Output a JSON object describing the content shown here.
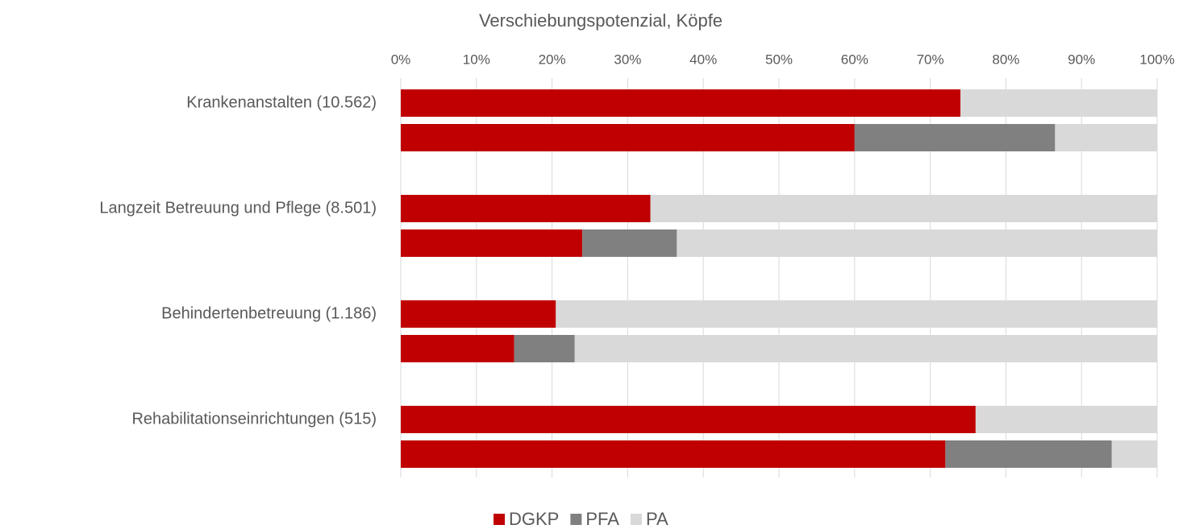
{
  "chart_data": {
    "type": "stacked_barh",
    "title": "Verschiebungspotenzial, Köpfe",
    "categories": [
      "Krankenanstalten (10.562)",
      null,
      "Langzeit Betreuung und Pflege (8.501)",
      null,
      "Behindertenbetreuung (1.186)",
      null,
      "Rehabilitationseinrichtungen (515)",
      null
    ],
    "series": [
      {
        "name": "DGKP",
        "color": "#c00000",
        "values": [
          74,
          60,
          33,
          24,
          20.5,
          15,
          76,
          72
        ]
      },
      {
        "name": "PFA",
        "color": "#808080",
        "values": [
          0,
          26.5,
          0,
          12.5,
          0,
          8,
          0,
          22
        ]
      },
      {
        "name": "PA",
        "color": "#d9d9d9",
        "values": [
          26,
          13.5,
          67,
          63.5,
          79.5,
          77,
          24,
          6
        ]
      }
    ],
    "xlim": [
      0,
      100
    ],
    "xticks": [
      {
        "value": 0,
        "label": "0%"
      },
      {
        "value": 10,
        "label": "10%"
      },
      {
        "value": 20,
        "label": "20%"
      },
      {
        "value": 30,
        "label": "30%"
      },
      {
        "value": 40,
        "label": "40%"
      },
      {
        "value": 50,
        "label": "50%"
      },
      {
        "value": 60,
        "label": "60%"
      },
      {
        "value": 70,
        "label": "70%"
      },
      {
        "value": 80,
        "label": "80%"
      },
      {
        "value": 90,
        "label": "90%"
      },
      {
        "value": 100,
        "label": "100%"
      }
    ],
    "grid": true,
    "legend": "bottom"
  }
}
